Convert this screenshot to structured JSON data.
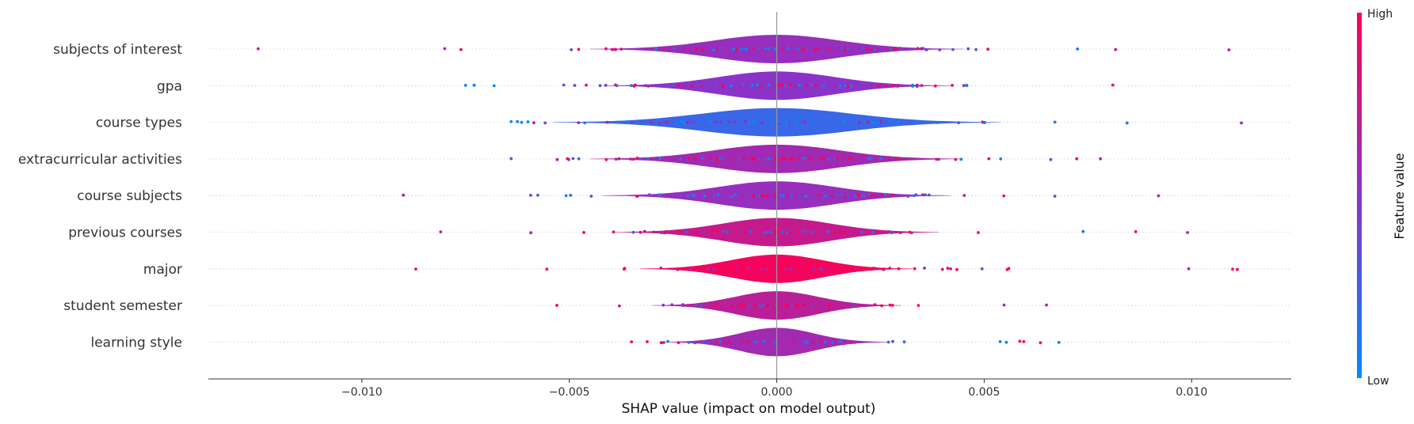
{
  "chart_data": {
    "type": "violin",
    "title": "",
    "xlabel": "SHAP value (impact on model output)",
    "ylabel": "",
    "xlim": [
      -0.0137,
      0.0124
    ],
    "x_ticks": [
      -0.01,
      -0.005,
      0.0,
      0.005,
      0.01
    ],
    "x_tick_labels": [
      "−0.010",
      "−0.005",
      "0.000",
      "0.005",
      "0.010"
    ],
    "grid": "horizontal dotted per feature",
    "colorbar": {
      "title": "Feature value",
      "high_label": "High",
      "low_label": "Low",
      "low_color": "#008afb",
      "high_color": "#ff0052"
    },
    "features": [
      {
        "name": "subjects of interest",
        "color_value": 0.55,
        "spread": 0.0015,
        "min": -0.0125,
        "max": 0.0109,
        "n": 95
      },
      {
        "name": "gpa",
        "color_value": 0.5,
        "spread": 0.0014,
        "min": -0.0075,
        "max": 0.0081,
        "n": 110
      },
      {
        "name": "course types",
        "color_value": 0.2,
        "spread": 0.0018,
        "min": -0.0064,
        "max": 0.0112,
        "n": 80
      },
      {
        "name": "extracurricular activities",
        "color_value": 0.6,
        "spread": 0.0015,
        "min": -0.0064,
        "max": 0.0078,
        "n": 90
      },
      {
        "name": "course subjects",
        "color_value": 0.55,
        "spread": 0.0014,
        "min": -0.009,
        "max": 0.0092,
        "n": 85
      },
      {
        "name": "previous courses",
        "color_value": 0.75,
        "spread": 0.0013,
        "min": -0.0081,
        "max": 0.0099,
        "n": 80
      },
      {
        "name": "major",
        "color_value": 0.95,
        "spread": 0.0011,
        "min": -0.0087,
        "max": 0.0111,
        "n": 80
      },
      {
        "name": "student semester",
        "color_value": 0.7,
        "spread": 0.001,
        "min": -0.0053,
        "max": 0.0065,
        "n": 75
      },
      {
        "name": "learning style",
        "color_value": 0.6,
        "spread": 0.0009,
        "min": -0.0035,
        "max": 0.0068,
        "n": 65
      }
    ]
  }
}
